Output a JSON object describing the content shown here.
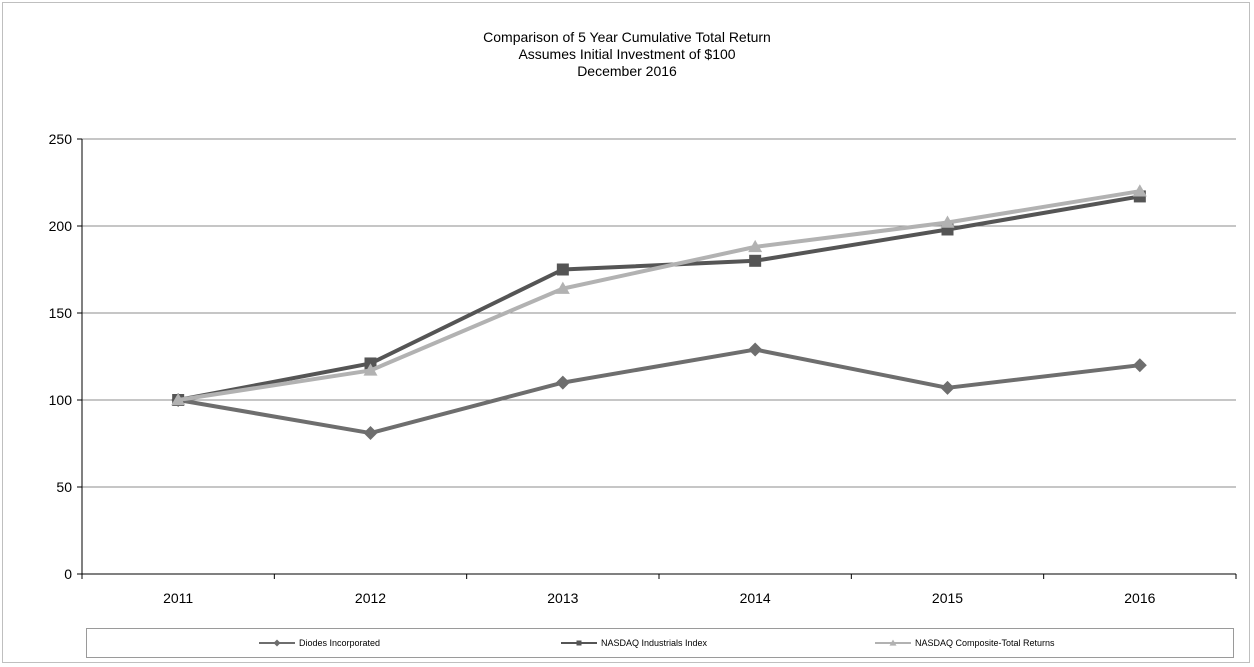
{
  "chart_data": {
    "type": "line",
    "title_lines": [
      "Comparison of 5 Year Cumulative Total Return",
      "Assumes Initial Investment of $100",
      "December 2016"
    ],
    "xlabel": "",
    "ylabel": "",
    "categories": [
      "2011",
      "2012",
      "2013",
      "2014",
      "2015",
      "2016"
    ],
    "y_ticks": [
      "0",
      "50",
      "100",
      "150",
      "200",
      "250"
    ],
    "ylim": [
      0,
      250
    ],
    "grid": true,
    "legend_position": "bottom",
    "series": [
      {
        "name": "Diodes Incorporated",
        "values": [
          100,
          81,
          110,
          129,
          107,
          120
        ],
        "color": "#6e6e6e",
        "marker": "diamond"
      },
      {
        "name": "NASDAQ Industrials Index",
        "values": [
          100,
          121,
          175,
          180,
          198,
          217
        ],
        "color": "#555555",
        "marker": "square"
      },
      {
        "name": "NASDAQ Composite-Total Returns",
        "values": [
          100,
          117,
          164,
          188,
          202,
          220
        ],
        "color": "#b2b2b2",
        "marker": "triangle"
      }
    ]
  }
}
